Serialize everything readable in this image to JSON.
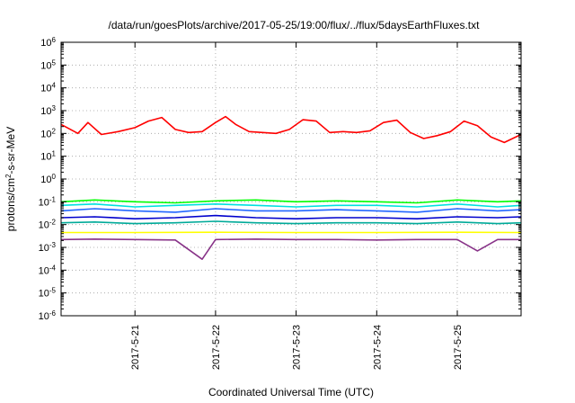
{
  "chart_data": {
    "type": "line",
    "title": "/data/run/goesPlots/archive/2017-05-25/19:00/flux/../flux/5daysEarthFluxes.txt",
    "xlabel": "Coordinated Universal Time (UTC)",
    "ylabel": {
      "before": "protons/cm",
      "sup": "2",
      "after": "-s-sr-MeV"
    },
    "yscale": "log",
    "ylim": [
      1e-06,
      1000000.0
    ],
    "y_ticks": [
      {
        "base": "10",
        "exp": "-6"
      },
      {
        "base": "10",
        "exp": "-5"
      },
      {
        "base": "10",
        "exp": "-4"
      },
      {
        "base": "10",
        "exp": "-3"
      },
      {
        "base": "10",
        "exp": "-2"
      },
      {
        "base": "10",
        "exp": "-1"
      },
      {
        "base": "10",
        "exp": "0"
      },
      {
        "base": "10",
        "exp": "1"
      },
      {
        "base": "10",
        "exp": "2"
      },
      {
        "base": "10",
        "exp": "3"
      },
      {
        "base": "10",
        "exp": "4"
      },
      {
        "base": "10",
        "exp": "5"
      },
      {
        "base": "10",
        "exp": "6"
      }
    ],
    "xlim": [
      "2017-05-20T02:00",
      "2017-05-25T19:00"
    ],
    "x_ticks": [
      "2017-5-21",
      "2017-5-22",
      "2017-5-23",
      "2017-5-24",
      "2017-5-25"
    ],
    "grid": true,
    "series": [
      {
        "color": "#ff0000",
        "x": [
          "2017-05-20T02:00",
          "2017-05-20T07:00",
          "2017-05-20T10:00",
          "2017-05-20T14:00",
          "2017-05-20T19:00",
          "2017-05-21T00:00",
          "2017-05-21T04:00",
          "2017-05-21T08:00",
          "2017-05-21T12:00",
          "2017-05-21T16:00",
          "2017-05-21T20:00",
          "2017-05-22T00:00",
          "2017-05-22T03:00",
          "2017-05-22T06:00",
          "2017-05-22T10:00",
          "2017-05-22T14:00",
          "2017-05-22T18:00",
          "2017-05-22T22:00",
          "2017-05-23T02:00",
          "2017-05-23T06:00",
          "2017-05-23T10:00",
          "2017-05-23T14:00",
          "2017-05-23T18:00",
          "2017-05-23T22:00",
          "2017-05-24T02:00",
          "2017-05-24T06:00",
          "2017-05-24T10:00",
          "2017-05-24T14:00",
          "2017-05-24T18:00",
          "2017-05-24T22:00",
          "2017-05-25T02:00",
          "2017-05-25T06:00",
          "2017-05-25T10:00",
          "2017-05-25T14:00",
          "2017-05-25T19:00"
        ],
        "y": [
          250,
          100,
          300,
          90,
          120,
          180,
          350,
          500,
          150,
          110,
          120,
          300,
          550,
          250,
          120,
          110,
          100,
          150,
          400,
          350,
          110,
          120,
          110,
          130,
          300,
          380,
          110,
          60,
          80,
          120,
          350,
          220,
          70,
          40,
          90
        ]
      },
      {
        "color": "#00ff00",
        "x": [
          "2017-05-20T02:00",
          "2017-05-20T12:00",
          "2017-05-21T00:00",
          "2017-05-21T12:00",
          "2017-05-22T00:00",
          "2017-05-22T12:00",
          "2017-05-23T00:00",
          "2017-05-23T12:00",
          "2017-05-24T00:00",
          "2017-05-24T12:00",
          "2017-05-25T00:00",
          "2017-05-25T12:00",
          "2017-05-25T19:00"
        ],
        "y": [
          0.1,
          0.12,
          0.1,
          0.09,
          0.11,
          0.12,
          0.1,
          0.11,
          0.1,
          0.09,
          0.12,
          0.1,
          0.11
        ]
      },
      {
        "color": "#00e0e0",
        "x": [
          "2017-05-20T02:00",
          "2017-05-20T12:00",
          "2017-05-21T00:00",
          "2017-05-21T12:00",
          "2017-05-22T00:00",
          "2017-05-22T12:00",
          "2017-05-23T00:00",
          "2017-05-23T12:00",
          "2017-05-24T00:00",
          "2017-05-24T12:00",
          "2017-05-25T00:00",
          "2017-05-25T12:00",
          "2017-05-25T19:00"
        ],
        "y": [
          0.07,
          0.08,
          0.06,
          0.07,
          0.08,
          0.07,
          0.06,
          0.07,
          0.07,
          0.06,
          0.08,
          0.06,
          0.07
        ]
      },
      {
        "color": "#2266ff",
        "x": [
          "2017-05-20T02:00",
          "2017-05-20T12:00",
          "2017-05-21T00:00",
          "2017-05-21T12:00",
          "2017-05-22T00:00",
          "2017-05-22T12:00",
          "2017-05-23T00:00",
          "2017-05-23T12:00",
          "2017-05-24T00:00",
          "2017-05-24T12:00",
          "2017-05-25T00:00",
          "2017-05-25T12:00",
          "2017-05-25T19:00"
        ],
        "y": [
          0.04,
          0.05,
          0.04,
          0.035,
          0.05,
          0.04,
          0.04,
          0.045,
          0.04,
          0.035,
          0.05,
          0.04,
          0.045
        ]
      },
      {
        "color": "#0000cc",
        "x": [
          "2017-05-20T02:00",
          "2017-05-20T12:00",
          "2017-05-21T00:00",
          "2017-05-21T12:00",
          "2017-05-22T00:00",
          "2017-05-22T12:00",
          "2017-05-23T00:00",
          "2017-05-23T12:00",
          "2017-05-24T00:00",
          "2017-05-24T12:00",
          "2017-05-25T00:00",
          "2017-05-25T12:00",
          "2017-05-25T19:00"
        ],
        "y": [
          0.02,
          0.022,
          0.018,
          0.02,
          0.025,
          0.02,
          0.018,
          0.02,
          0.02,
          0.018,
          0.022,
          0.02,
          0.022
        ]
      },
      {
        "color": "#00aa99",
        "x": [
          "2017-05-20T02:00",
          "2017-05-20T12:00",
          "2017-05-21T00:00",
          "2017-05-21T12:00",
          "2017-05-22T00:00",
          "2017-05-22T12:00",
          "2017-05-23T00:00",
          "2017-05-23T12:00",
          "2017-05-24T00:00",
          "2017-05-24T12:00",
          "2017-05-25T00:00",
          "2017-05-25T12:00",
          "2017-05-25T19:00"
        ],
        "y": [
          0.012,
          0.013,
          0.011,
          0.012,
          0.014,
          0.012,
          0.011,
          0.012,
          0.012,
          0.011,
          0.013,
          0.011,
          0.012
        ]
      },
      {
        "color": "#ffff00",
        "x": [
          "2017-05-20T02:00",
          "2017-05-21T00:00",
          "2017-05-22T00:00",
          "2017-05-23T00:00",
          "2017-05-24T00:00",
          "2017-05-25T00:00",
          "2017-05-25T19:00"
        ],
        "y": [
          0.0045,
          0.0045,
          0.0046,
          0.0045,
          0.0045,
          0.0046,
          0.0045
        ]
      },
      {
        "color": "#883388",
        "x": [
          "2017-05-20T02:00",
          "2017-05-20T12:00",
          "2017-05-21T00:00",
          "2017-05-21T12:00",
          "2017-05-21T20:00",
          "2017-05-22T00:00",
          "2017-05-22T12:00",
          "2017-05-23T00:00",
          "2017-05-23T12:00",
          "2017-05-24T00:00",
          "2017-05-24T12:00",
          "2017-05-25T00:00",
          "2017-05-25T06:00",
          "2017-05-25T12:00",
          "2017-05-25T19:00"
        ],
        "y": [
          0.0022,
          0.0023,
          0.0022,
          0.0021,
          0.0003,
          0.0022,
          0.0023,
          0.0022,
          0.0022,
          0.0021,
          0.0022,
          0.0022,
          0.0007,
          0.0022,
          0.0022
        ]
      }
    ]
  }
}
